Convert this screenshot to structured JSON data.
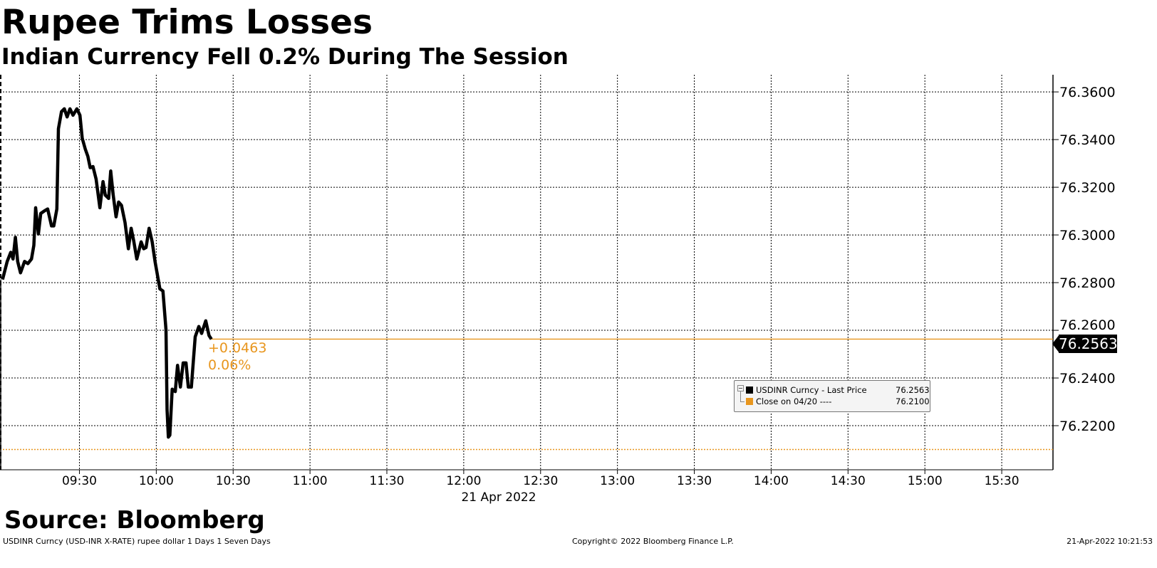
{
  "title": "Rupee Trims Losses",
  "subtitle": "Indian Currency Fell 0.2% During The Session",
  "source": "Source: Bloomberg",
  "footer": {
    "left": "USDINR Curncy (USD-INR X-RATE) rupee dollar 1 Days 1 Seven Days",
    "center": "Copyright© 2022 Bloomberg Finance L.P.",
    "right": "21-Apr-2022 10:21:53"
  },
  "colors": {
    "line": "#000000",
    "close": "#e8961e",
    "grid": "#000000"
  },
  "chart_data": {
    "type": "line",
    "xlabel": "21 Apr 2022",
    "xlim": [
      "08:59",
      "15:50"
    ],
    "ylim": [
      76.2015,
      76.3672
    ],
    "grid": true,
    "x_ticks": [
      "09:30",
      "10:00",
      "10:30",
      "11:00",
      "11:30",
      "12:00",
      "12:30",
      "13:00",
      "13:30",
      "14:00",
      "14:30",
      "15:00",
      "15:30"
    ],
    "y_ticks": [
      "76.3600",
      "76.3400",
      "76.3200",
      "76.3000",
      "76.2800",
      "76.2600",
      "76.2400",
      "76.2200"
    ],
    "y_axis_side": "right",
    "series": [
      {
        "name": "USDINR Curncy - Last Price",
        "x": [
          "09:00",
          "09:01.8",
          "09:03.2",
          "09:04.1",
          "09:05",
          "09:05.9",
          "09:07",
          "09:08.6",
          "09:09.9",
          "09:11.3",
          "09:12.2",
          "09:12.9",
          "09:14",
          "09:14.9",
          "09:16.2",
          "09:17.6",
          "09:19.1",
          "09:20",
          "09:21.2",
          "09:21.8",
          "09:23",
          "09:24.1",
          "09:25.2",
          "09:26.3",
          "09:27.5",
          "09:29",
          "09:30.2",
          "09:31.1",
          "09:32.3",
          "09:33.3",
          "09:34.2",
          "09:35.3",
          "09:36.5",
          "09:38",
          "09:39.2",
          "09:40.1",
          "09:41.4",
          "09:42.2",
          "09:43.2",
          "09:44.3",
          "09:45.3",
          "09:46.4",
          "09:47.8",
          "09:49.1",
          "09:50.2",
          "09:51.2",
          "09:52.4",
          "09:54.1",
          "09:55.1",
          "09:56",
          "09:57.2",
          "09:58.4",
          "09:59.5",
          "10:01.4",
          "10:02.6",
          "10:03.8",
          "10:04.2",
          "10:04.7",
          "10:05.3",
          "10:06.2",
          "10:07.4",
          "10:08.3",
          "10:09.4",
          "10:10.5",
          "10:11.6",
          "10:12.5",
          "10:13.7",
          "10:15.2",
          "10:16.6",
          "10:17.7",
          "10:19.3",
          "10:20.6",
          "10:21.5"
        ],
        "values": [
          76.2813,
          76.2889,
          76.2927,
          76.2899,
          76.299,
          76.2889,
          76.2841,
          76.2889,
          76.288,
          76.2899,
          76.2956,
          76.3114,
          76.3004,
          76.309,
          76.31,
          76.3109,
          76.3038,
          76.3038,
          76.3109,
          76.3445,
          76.3517,
          76.3529,
          76.3495,
          76.3529,
          76.3502,
          76.3529,
          76.3502,
          76.3406,
          76.3359,
          76.333,
          76.3282,
          76.3287,
          76.3234,
          76.3114,
          76.3224,
          76.3167,
          76.3153,
          76.3268,
          76.3167,
          76.3076,
          76.3138,
          76.3124,
          76.3052,
          76.2942,
          76.3028,
          76.2975,
          76.2899,
          76.2971,
          76.2942,
          76.2947,
          76.3028,
          76.2971,
          76.2889,
          76.2774,
          76.2765,
          76.2602,
          76.2267,
          76.2152,
          76.216,
          76.2353,
          76.2343,
          76.2453,
          76.2362,
          76.2463,
          76.2463,
          76.2362,
          76.2362,
          76.2573,
          76.2616,
          76.2587,
          76.264,
          76.2578,
          76.2563
        ]
      },
      {
        "name": "Close on 04/20",
        "value": 76.21,
        "style": "dotted"
      }
    ],
    "last_price": {
      "value": "76.2563",
      "change": "+0.0463",
      "pct": "0.06%"
    },
    "legend": {
      "placement": "bottom-right",
      "entries": [
        {
          "label": "USDINR Curncy - Last Price",
          "value": "76.2563",
          "color": "#000000"
        },
        {
          "label": "Close on 04/20 ----",
          "value": "76.2100",
          "color": "#e8961e"
        }
      ]
    }
  }
}
